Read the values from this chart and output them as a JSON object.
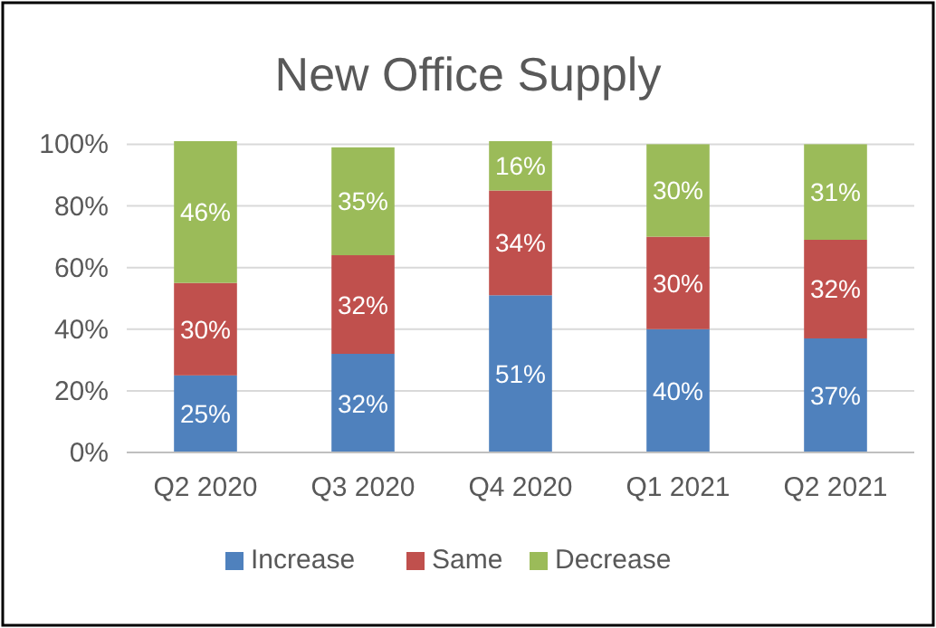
{
  "chart_data": {
    "type": "bar",
    "title": "New Office Supply",
    "stacked": true,
    "categories": [
      "Q2 2020",
      "Q3 2020",
      "Q4 2020",
      "Q1 2021",
      "Q2 2021"
    ],
    "series": [
      {
        "name": "Increase",
        "color": "#4f81bd",
        "values": [
          25,
          32,
          51,
          40,
          37
        ],
        "value_labels": [
          "25%",
          "32%",
          "51%",
          "40%",
          "37%"
        ]
      },
      {
        "name": "Same",
        "color": "#c0504d",
        "values": [
          30,
          32,
          34,
          30,
          32
        ],
        "value_labels": [
          "30%",
          "32%",
          "34%",
          "30%",
          "32%"
        ]
      },
      {
        "name": "Decrease",
        "color": "#9bbb59",
        "values": [
          46,
          35,
          16,
          30,
          31
        ],
        "value_labels": [
          "46%",
          "35%",
          "16%",
          "30%",
          "31%"
        ]
      }
    ],
    "ylim": [
      0,
      101
    ],
    "yticks": [
      {
        "value": 0,
        "label": "0%"
      },
      {
        "value": 20,
        "label": "20%"
      },
      {
        "value": 40,
        "label": "40%"
      },
      {
        "value": 60,
        "label": "60%"
      },
      {
        "value": 80,
        "label": "80%"
      },
      {
        "value": 100,
        "label": "100%"
      }
    ],
    "grid": "y",
    "legend": "bottom"
  }
}
